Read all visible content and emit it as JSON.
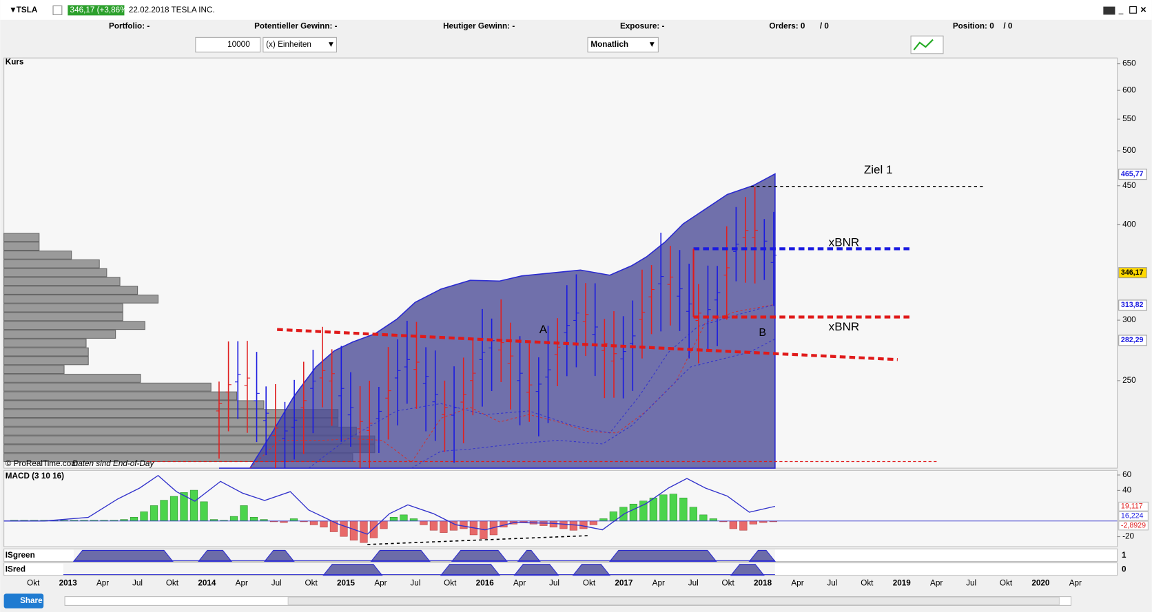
{
  "header": {
    "symbol": "TSLA",
    "quote": "346,17 (+3,86%)",
    "date_name": "22.02.2018 TESLA INC."
  },
  "summary": [
    "Portfolio: -",
    "Potentieller Gewinn: -",
    "Heutiger Gewinn: -",
    "Exposure: -",
    "Orders: 0",
    "/ 0",
    "Position: 0",
    "/ 0"
  ],
  "toolbar": {
    "quantity": "10000",
    "unit": "(x) Einheiten",
    "period": "Monatlich"
  },
  "price_panel": {
    "title": "Kurs",
    "source": "© ProRealTime.com",
    "note": "Daten sind End-of-Day",
    "log": true,
    "ylim": [
      192,
      660
    ],
    "yticks": [
      250,
      300,
      400,
      450,
      500,
      550,
      600,
      650
    ],
    "badges": [
      {
        "value": 465.77,
        "label": "465,77"
      },
      {
        "value": 346.17,
        "label": "346,17"
      },
      {
        "value": 313.82,
        "label": "313,82"
      },
      {
        "value": 282.29,
        "label": "282,29"
      }
    ],
    "annotations": [
      "Ziel 1",
      "xBNR",
      "xBNR",
      "A",
      "B"
    ]
  },
  "macd_panel": {
    "title": "MACD (3 10 16)",
    "ylim": [
      -33,
      66
    ],
    "yticks": [
      -20,
      40,
      60
    ],
    "badges": [
      {
        "value": 19.117,
        "label": "19,117"
      },
      {
        "value": 16.224,
        "label": "16,224"
      },
      {
        "value": -2.8929,
        "label": "-2,8929"
      }
    ]
  },
  "indicators": [
    {
      "title": "ISgreen",
      "tick": "1"
    },
    {
      "title": "ISred",
      "tick": "0"
    }
  ],
  "x_axis": {
    "labels": [
      "Okt",
      "2013",
      "Apr",
      "Jul",
      "Okt",
      "2014",
      "Apr",
      "Jul",
      "Okt",
      "2015",
      "Apr",
      "Jul",
      "Okt",
      "2016",
      "Apr",
      "Jul",
      "Okt",
      "2017",
      "Apr",
      "Jul",
      "Okt",
      "2018",
      "Apr",
      "Jul",
      "Okt",
      "2019",
      "Apr",
      "Jul",
      "Okt",
      "2020",
      "Apr"
    ]
  },
  "footer": {
    "share": "Share"
  }
}
